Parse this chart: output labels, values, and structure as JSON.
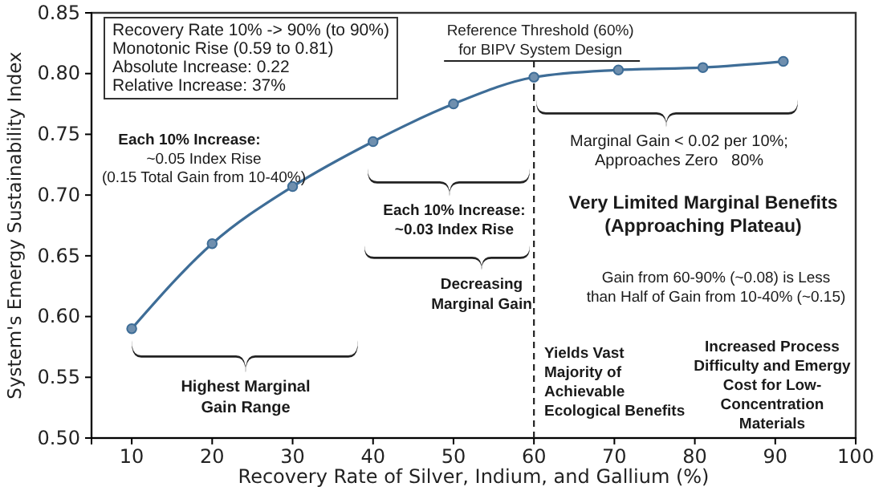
{
  "chart_data": {
    "type": "line",
    "xlabel": "Recovery Rate of Silver, Indium, and Gallium (%)",
    "ylabel": "System's Emergy Sustainability Index",
    "x": [
      10,
      20,
      30,
      40,
      50,
      60,
      70.5,
      81,
      91
    ],
    "series": [
      {
        "color": "#3e6d97",
        "values": [
          0.59,
          0.66,
          0.707,
          0.744,
          0.775,
          0.797,
          0.803,
          0.805,
          0.81
        ]
      }
    ],
    "xlim": [
      5,
      100
    ],
    "xticks": [
      10,
      20,
      30,
      40,
      50,
      60,
      70,
      80,
      90,
      100
    ],
    "ylim": [
      0.5,
      0.85
    ],
    "yticks": [
      {
        "value": 0.5,
        "label": "0.50"
      },
      0.55,
      {
        "value": 0.6,
        "label": "0.60"
      },
      0.65,
      {
        "value": 0.7,
        "label": "0.70"
      },
      0.75,
      {
        "value": 0.8,
        "label": "0.80"
      },
      0.85
    ],
    "marker": "circle",
    "line_style": "solid",
    "grid": false,
    "ref_lines": [
      {
        "axis": "x",
        "value": 60,
        "label": "Reference Threshold (60%)\nfor BIPV System Design",
        "line_style": "dashed",
        "color": "#222222"
      }
    ],
    "annotations": [
      "Recovery Rate 10% -> 90% (to 90%)\nMonotonic Rise (0.59 to 0.81)\nAbsolute Increase: 0.22\nRelative Increase: 37%",
      "Each 10% Increase:",
      "~0.05 Index Rise\n(0.15 Total Gain from 10-40%)",
      "Each 10% Increase:\n~0.03 Index Rise",
      "Decreasing\nMarginal Gain",
      "Highest Marginal\nGain Range",
      "Marginal Gain < 0.02 per 10%;\nApproaches Zero   80%",
      "Very Limited Marginal Benefits\n(Approaching Plateau)",
      "Gain from 60-90% (~0.08) is Less\nthan Half of Gain from 10-40% (~0.15)",
      "Yields Vast\nMajority of\nAchievable\nEcological Benefits",
      "Increased Process\nDifficulty and Emergy\nCost for Low-\nConcentration\nMaterials"
    ]
  }
}
